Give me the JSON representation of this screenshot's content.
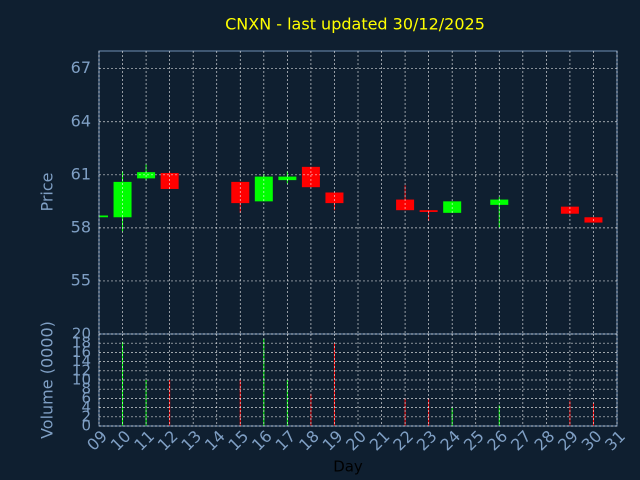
{
  "chart_data": {
    "type": "candlestick",
    "title": "CNXN - last updated 30/12/2025",
    "ylabel": "Price",
    "xlabel": "Day",
    "volume_label": "Volume (0000)",
    "x": [
      9,
      10,
      11,
      12,
      15,
      16,
      17,
      18,
      19,
      22,
      23,
      24,
      26,
      29,
      30
    ],
    "open": [
      58.6,
      58.6,
      60.8,
      61.1,
      60.6,
      59.5,
      60.7,
      61.45,
      60.0,
      59.6,
      59.0,
      58.85,
      59.3,
      59.2,
      58.6
    ],
    "high": [
      58.7,
      61.2,
      61.6,
      61.2,
      60.6,
      61.05,
      61.2,
      61.45,
      60.0,
      60.4,
      59.0,
      59.5,
      59.75,
      59.2,
      58.6
    ],
    "low": [
      58.6,
      57.8,
      60.7,
      60.2,
      58.85,
      59.5,
      60.5,
      60.3,
      59.0,
      59.0,
      58.4,
      58.85,
      58.0,
      58.75,
      58.3
    ],
    "close": [
      58.7,
      60.6,
      61.15,
      60.2,
      59.4,
      60.9,
      60.9,
      60.3,
      59.4,
      59.0,
      58.9,
      59.5,
      59.6,
      58.8,
      58.3
    ],
    "volume": [
      0,
      18.3,
      10,
      10,
      10,
      19,
      10,
      7,
      18,
      6,
      6,
      4,
      4.5,
      5.5,
      5
    ],
    "up_color": "#00ff00",
    "down_color": "#ff0000",
    "xlim": [
      9,
      31
    ],
    "xticks": [
      {
        "value": 9,
        "label": "09"
      },
      10,
      11,
      12,
      13,
      14,
      15,
      16,
      17,
      18,
      19,
      20,
      21,
      22,
      23,
      24,
      25,
      26,
      27,
      28,
      29,
      30,
      31
    ],
    "ylim": [
      52,
      68
    ],
    "yticks": [
      55,
      58,
      61,
      64,
      67
    ],
    "vlim": [
      0,
      20
    ],
    "vticks": [
      0,
      2,
      4,
      6,
      8,
      10,
      12,
      14,
      16,
      18,
      20
    ],
    "grid": true
  }
}
